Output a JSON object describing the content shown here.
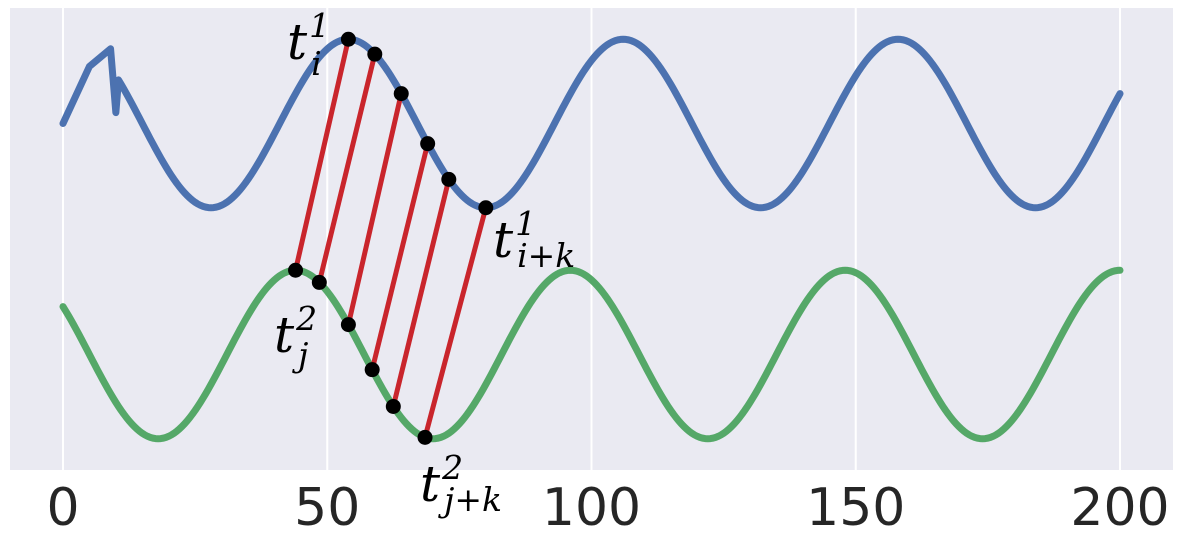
{
  "chart_data": {
    "type": "line",
    "title": "",
    "xlabel": "",
    "ylabel": "",
    "xlim": [
      0,
      200
    ],
    "x_ticks": [
      {
        "value": 0,
        "label": "0"
      },
      {
        "value": 50,
        "label": "50"
      },
      {
        "value": 100,
        "label": "100"
      },
      {
        "value": 150,
        "label": "150"
      },
      {
        "value": 200,
        "label": "200"
      }
    ],
    "grid": true,
    "legend": "none",
    "background": "#EAEAF2",
    "series": [
      {
        "color": "#4C72B0",
        "description_only": "top sine curve",
        "x_start": 0,
        "x_end": 200,
        "period": 52,
        "center": 1.0,
        "amplitude": 0.62,
        "peak_x": 54,
        "glitch": {
          "x": [
            0,
            5,
            9,
            10
          ],
          "y": [
            1.0,
            1.42,
            1.55,
            1.08
          ]
        }
      },
      {
        "color": "#55A868",
        "description_only": "bottom sine curve",
        "x_start": 0,
        "x_end": 200,
        "period": 52,
        "center": -0.7,
        "amplitude": 0.62,
        "peak_x": 44
      }
    ],
    "alignment_lines": {
      "color": "#C9252C",
      "pairs": [
        {
          "top_x": 54.0,
          "bottom_x": 44.0
        },
        {
          "top_x": 59.0,
          "bottom_x": 48.5
        },
        {
          "top_x": 64.0,
          "bottom_x": 54.0
        },
        {
          "top_x": 69.0,
          "bottom_x": 58.5
        },
        {
          "top_x": 73.0,
          "bottom_x": 62.5
        },
        {
          "top_x": 80.0,
          "bottom_x": 68.5
        }
      ],
      "marker_color": "#000000"
    },
    "annotations": [
      {
        "id": "top_start",
        "base": "t",
        "sup": "1",
        "sub": "i"
      },
      {
        "id": "top_end",
        "base": "t",
        "sup": "1",
        "sub": "i+k"
      },
      {
        "id": "bottom_start",
        "base": "t",
        "sup": "2",
        "sub": "j"
      },
      {
        "id": "bottom_end",
        "base": "t",
        "sup": "2",
        "sub": "j+k"
      }
    ]
  }
}
